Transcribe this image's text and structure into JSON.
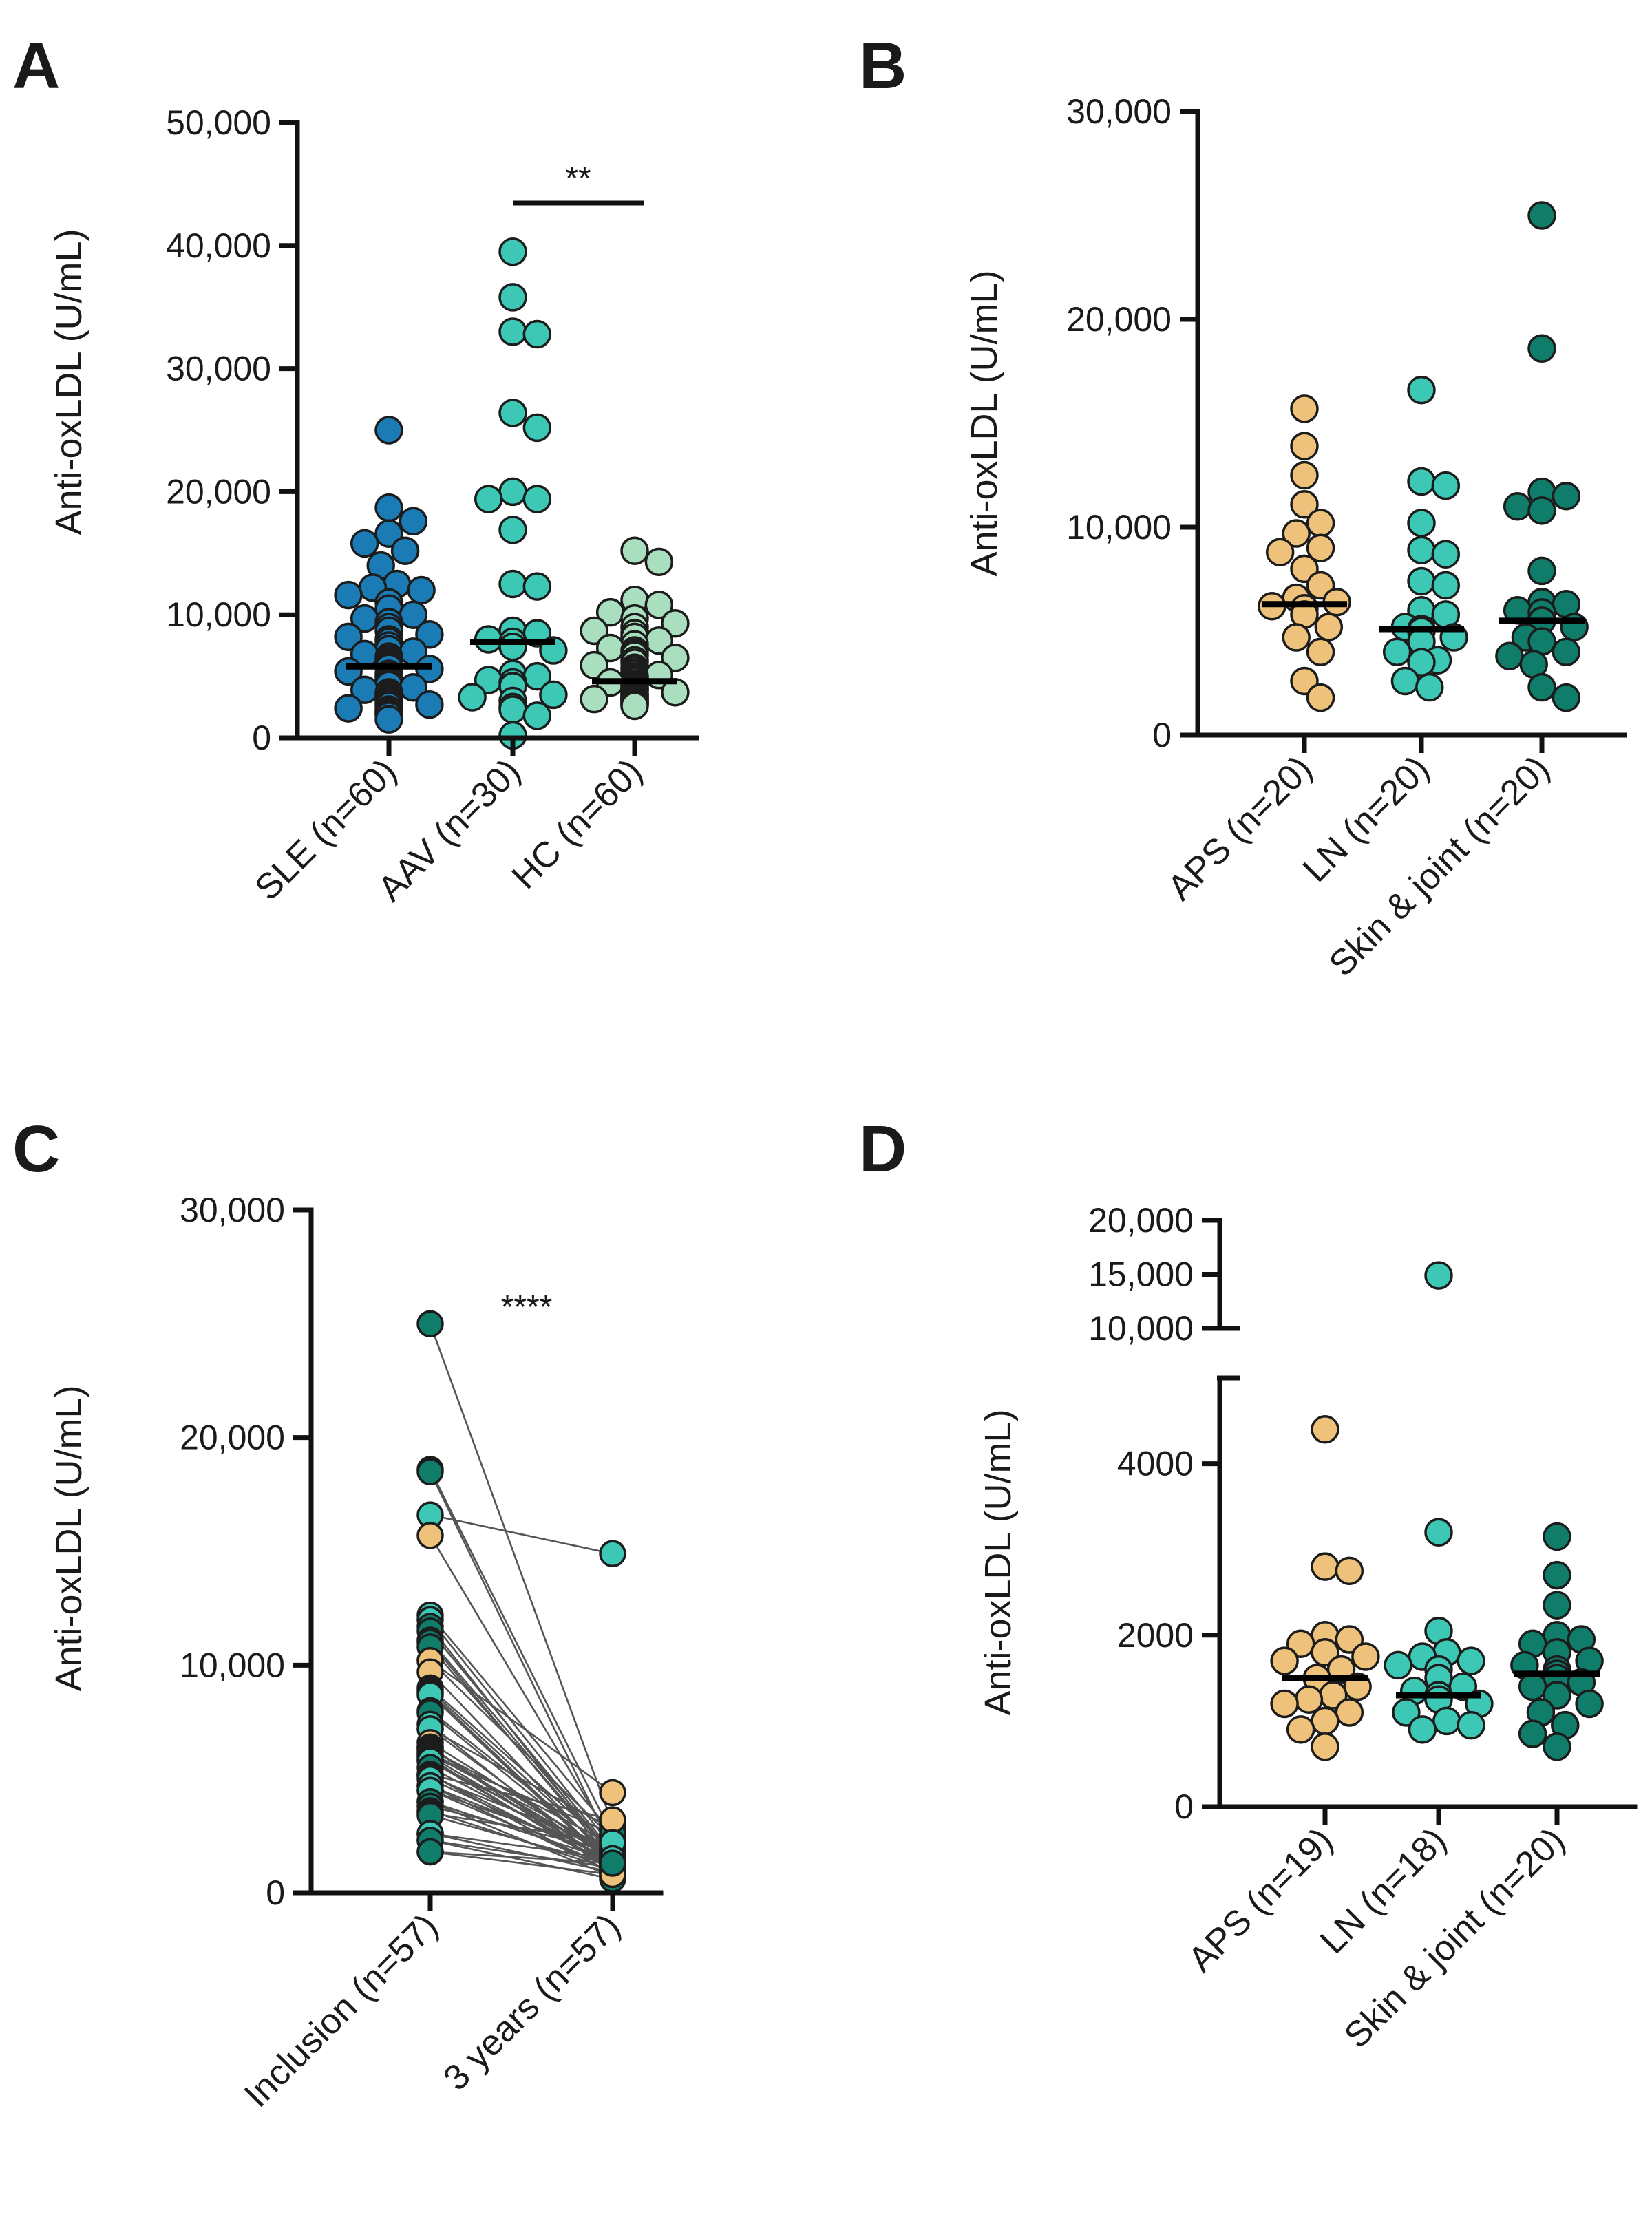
{
  "colors": {
    "sle": "#1a7bb5",
    "aav": "#3cc8b4",
    "hc": "#a9dfbe",
    "aps": "#eec27a",
    "ln": "#3cc8b4",
    "skin": "#0f7d6a",
    "pair_line": "#555555"
  },
  "chart_data": [
    {
      "panel": "A",
      "type": "scatter",
      "ylabel": "Anti-oxLDL (U/mL)",
      "ylim": [
        0,
        50000
      ],
      "yticks": [
        "0",
        "10,000",
        "20,000",
        "30,000",
        "40,000",
        "50,000"
      ],
      "significance": "**",
      "significance_between": [
        "AAV (n=30)",
        "HC (n=60)"
      ],
      "series": [
        {
          "name": "SLE (n=60)",
          "color": "sle",
          "median": 5800,
          "values": [
            25000,
            18700,
            17600,
            16600,
            15800,
            15200,
            14000,
            12500,
            12200,
            12000,
            11600,
            11000,
            10500,
            10000,
            9700,
            9400,
            9000,
            8700,
            8400,
            8200,
            8000,
            7800,
            7500,
            7200,
            7000,
            6800,
            6600,
            6400,
            6200,
            6000,
            5900,
            5800,
            5700,
            5600,
            5400,
            5200,
            5000,
            4900,
            4700,
            4500,
            4300,
            4100,
            3900,
            3700,
            3600,
            3500,
            3300,
            3100,
            3000,
            2800,
            2700,
            2600,
            2400,
            2300,
            2200,
            2100,
            2000,
            1900,
            1800,
            1500
          ]
        },
        {
          "name": "AAV (n=30)",
          "color": "aav",
          "median": 7800,
          "values": [
            39500,
            35800,
            33000,
            32800,
            26400,
            25200,
            20000,
            19400,
            19400,
            16900,
            12500,
            12300,
            8700,
            8500,
            8000,
            7800,
            7400,
            7100,
            5200,
            5000,
            4700,
            4500,
            4200,
            3500,
            3300,
            3000,
            2500,
            2300,
            1800,
            200
          ]
        },
        {
          "name": "HC (n=60)",
          "color": "hc",
          "median": 4600,
          "values": [
            15200,
            14300,
            11200,
            10800,
            10200,
            9700,
            9300,
            9000,
            8700,
            8500,
            8200,
            7900,
            7600,
            7300,
            7100,
            6900,
            6700,
            6500,
            6300,
            6100,
            5900,
            5700,
            5500,
            5300,
            5200,
            5100,
            5000,
            4900,
            4800,
            4700,
            4600,
            4500,
            4400,
            4300,
            4200,
            4100,
            4000,
            3950,
            3900,
            3800,
            3700,
            3600,
            3550,
            3500,
            3400,
            3300,
            3250,
            3200,
            3150,
            3100,
            3050,
            3000,
            2950,
            2900,
            2850,
            2800,
            2750,
            2700,
            2650,
            2600
          ]
        }
      ]
    },
    {
      "panel": "B",
      "type": "scatter",
      "ylabel": "Anti-oxLDL (U/mL)",
      "ylim": [
        0,
        30000
      ],
      "yticks": [
        "0",
        "10,000",
        "20,000",
        "30,000"
      ],
      "series": [
        {
          "name": "APS (n=20)",
          "color": "aps",
          "median": 6300,
          "values": [
            15700,
            13900,
            12500,
            11100,
            10200,
            9700,
            9000,
            8800,
            8000,
            7200,
            6600,
            6400,
            6200,
            6100,
            5800,
            5200,
            4700,
            4000,
            2600,
            1800
          ]
        },
        {
          "name": "LN (n=20)",
          "color": "ln",
          "median": 5100,
          "values": [
            16600,
            12200,
            12000,
            10200,
            8900,
            8700,
            7400,
            7200,
            6000,
            5800,
            5200,
            5100,
            5000,
            4700,
            4500,
            4000,
            3600,
            3500,
            2600,
            2300
          ]
        },
        {
          "name": "Skin & joint (n=20)",
          "color": "skin",
          "median": 5500,
          "values": [
            25000,
            18600,
            11700,
            11500,
            11000,
            10800,
            7900,
            6400,
            6300,
            6000,
            5900,
            5500,
            5200,
            4700,
            4500,
            4000,
            3800,
            3400,
            2300,
            1800
          ]
        }
      ]
    },
    {
      "panel": "C",
      "type": "line",
      "ylabel": "Anti-oxLDL (U/mL)",
      "ylim": [
        0,
        30000
      ],
      "yticks": [
        "0",
        "10,000",
        "20,000",
        "30,000"
      ],
      "categories": [
        "Inclusion (n=57)",
        "3 years (n=57)"
      ],
      "significance": "****",
      "pairs": [
        {
          "from": 25000,
          "to": 3000,
          "color": "skin"
        },
        {
          "from": 18600,
          "to": 2500,
          "color": "skin"
        },
        {
          "from": 18500,
          "to": 1900,
          "color": "skin"
        },
        {
          "from": 16600,
          "to": 14900,
          "color": "ln"
        },
        {
          "from": 15700,
          "to": 2200,
          "color": "aps"
        },
        {
          "from": 12200,
          "to": 2600,
          "color": "ln"
        },
        {
          "from": 12000,
          "to": 2000,
          "color": "ln"
        },
        {
          "from": 11700,
          "to": 1500,
          "color": "skin"
        },
        {
          "from": 11500,
          "to": 1800,
          "color": "skin"
        },
        {
          "from": 11100,
          "to": 1700,
          "color": "aps"
        },
        {
          "from": 11000,
          "to": 1400,
          "color": "skin"
        },
        {
          "from": 10800,
          "to": 1600,
          "color": "skin"
        },
        {
          "from": 10200,
          "to": 2400,
          "color": "ln"
        },
        {
          "from": 10200,
          "to": 4400,
          "color": "aps"
        },
        {
          "from": 9700,
          "to": 1300,
          "color": "aps"
        },
        {
          "from": 9000,
          "to": 1900,
          "color": "aps"
        },
        {
          "from": 8900,
          "to": 1500,
          "color": "ln"
        },
        {
          "from": 8800,
          "to": 1200,
          "color": "aps"
        },
        {
          "from": 8700,
          "to": 1100,
          "color": "ln"
        },
        {
          "from": 8000,
          "to": 1700,
          "color": "aps"
        },
        {
          "from": 7900,
          "to": 1400,
          "color": "skin"
        },
        {
          "from": 7400,
          "to": 1000,
          "color": "ln"
        },
        {
          "from": 7200,
          "to": 2800,
          "color": "aps"
        },
        {
          "from": 7200,
          "to": 1300,
          "color": "ln"
        },
        {
          "from": 6600,
          "to": 1600,
          "color": "aps"
        },
        {
          "from": 6400,
          "to": 1200,
          "color": "aps"
        },
        {
          "from": 6400,
          "to": 900,
          "color": "skin"
        },
        {
          "from": 6300,
          "to": 2100,
          "color": "skin"
        },
        {
          "from": 6200,
          "to": 1500,
          "color": "aps"
        },
        {
          "from": 6100,
          "to": 1800,
          "color": "aps"
        },
        {
          "from": 6000,
          "to": 1300,
          "color": "ln"
        },
        {
          "from": 6000,
          "to": 2600,
          "color": "skin"
        },
        {
          "from": 5900,
          "to": 1000,
          "color": "skin"
        },
        {
          "from": 5800,
          "to": 1600,
          "color": "aps"
        },
        {
          "from": 5800,
          "to": 1100,
          "color": "ln"
        },
        {
          "from": 5500,
          "to": 1400,
          "color": "skin"
        },
        {
          "from": 5200,
          "to": 3200,
          "color": "aps"
        },
        {
          "from": 5200,
          "to": 1200,
          "color": "ln"
        },
        {
          "from": 5200,
          "to": 800,
          "color": "skin"
        },
        {
          "from": 5100,
          "to": 1900,
          "color": "ln"
        },
        {
          "from": 5000,
          "to": 1300,
          "color": "ln"
        },
        {
          "from": 4700,
          "to": 1500,
          "color": "aps"
        },
        {
          "from": 4700,
          "to": 900,
          "color": "ln"
        },
        {
          "from": 4500,
          "to": 1700,
          "color": "skin"
        },
        {
          "from": 4500,
          "to": 1100,
          "color": "ln"
        },
        {
          "from": 4000,
          "to": 1400,
          "color": "aps"
        },
        {
          "from": 4000,
          "to": 700,
          "color": "skin"
        },
        {
          "from": 3800,
          "to": 1800,
          "color": "skin"
        },
        {
          "from": 3600,
          "to": 1000,
          "color": "ln"
        },
        {
          "from": 3500,
          "to": 2200,
          "color": "ln"
        },
        {
          "from": 3400,
          "to": 1200,
          "color": "skin"
        },
        {
          "from": 2600,
          "to": 900,
          "color": "aps"
        },
        {
          "from": 2600,
          "to": 1500,
          "color": "ln"
        },
        {
          "from": 2300,
          "to": 1100,
          "color": "ln"
        },
        {
          "from": 2300,
          "to": 600,
          "color": "skin"
        },
        {
          "from": 1800,
          "to": 800,
          "color": "aps"
        },
        {
          "from": 1800,
          "to": 1300,
          "color": "skin"
        }
      ]
    },
    {
      "panel": "D",
      "type": "scatter",
      "ylabel": "Anti-oxLDL (U/mL)",
      "y_axis_break": true,
      "ylim_lower": [
        0,
        5000
      ],
      "ylim_upper": [
        10000,
        20000
      ],
      "yticks_lower": [
        "0",
        "2000",
        "4000"
      ],
      "yticks_upper": [
        "10,000",
        "15,000",
        "20,000"
      ],
      "series": [
        {
          "name": "APS (n=19)",
          "color": "aps",
          "median": 1500,
          "values": [
            4400,
            2800,
            2750,
            2000,
            1950,
            1900,
            1800,
            1750,
            1700,
            1600,
            1500,
            1400,
            1300,
            1250,
            1200,
            1100,
            1000,
            900,
            700
          ]
        },
        {
          "name": "LN (n=18)",
          "color": "ln",
          "median": 1300,
          "values": [
            14900,
            3200,
            2050,
            1800,
            1750,
            1700,
            1650,
            1600,
            1500,
            1400,
            1350,
            1300,
            1250,
            1200,
            1100,
            1000,
            950,
            900
          ]
        },
        {
          "name": "Skin & joint (n=20)",
          "color": "skin",
          "median": 1550,
          "values": [
            3150,
            2700,
            2350,
            2000,
            1950,
            1900,
            1800,
            1700,
            1650,
            1600,
            1550,
            1500,
            1450,
            1400,
            1300,
            1200,
            1100,
            950,
            850,
            700
          ]
        }
      ]
    }
  ]
}
